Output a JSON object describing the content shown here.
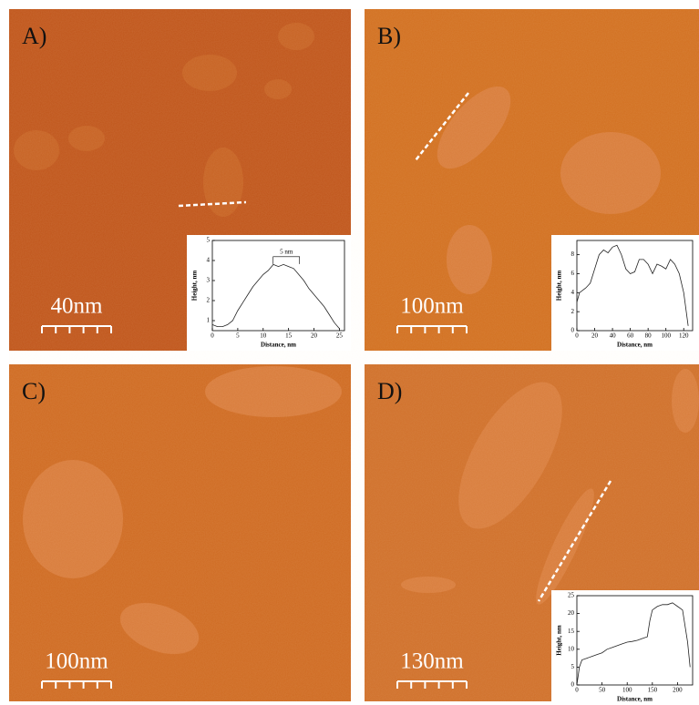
{
  "panels": [
    {
      "label": "A)",
      "scale_bar": "40nm",
      "inset": {
        "type": "line",
        "ylabel": "Height, nm",
        "xlabel": "Distance, nm",
        "annotation": "5 nm",
        "x": [
          0,
          1,
          2,
          3,
          4,
          5,
          6,
          7,
          8,
          9,
          10,
          11,
          12,
          13,
          14,
          15,
          16,
          17,
          18,
          19,
          20,
          21,
          22,
          23,
          24,
          25
        ],
        "values": [
          0.8,
          0.7,
          0.7,
          0.8,
          1.0,
          1.5,
          1.9,
          2.3,
          2.7,
          3.0,
          3.3,
          3.5,
          3.8,
          3.7,
          3.8,
          3.7,
          3.6,
          3.3,
          3.0,
          2.6,
          2.3,
          2.0,
          1.7,
          1.3,
          0.9,
          0.6
        ],
        "xlim": [
          0,
          26
        ],
        "ylim": [
          0.5,
          5
        ],
        "xticks": [
          0,
          5,
          10,
          15,
          20,
          25
        ],
        "yticks": [
          1,
          2,
          3,
          4,
          5
        ]
      }
    },
    {
      "label": "B)",
      "scale_bar": "100nm",
      "inset": {
        "type": "line",
        "ylabel": "Height, nm",
        "xlabel": "Distance, nm",
        "x": [
          0,
          3,
          10,
          15,
          20,
          25,
          30,
          35,
          40,
          45,
          50,
          55,
          60,
          65,
          70,
          75,
          80,
          85,
          90,
          95,
          100,
          105,
          110,
          115,
          120,
          125
        ],
        "values": [
          3,
          4,
          4.5,
          5,
          6.5,
          8,
          8.5,
          8.2,
          8.8,
          9,
          8,
          6.5,
          6,
          6.2,
          7.5,
          7.5,
          7,
          6,
          7,
          6.8,
          6.5,
          7.5,
          7,
          6,
          4,
          0.5
        ],
        "xlim": [
          0,
          130
        ],
        "ylim": [
          0,
          9.5
        ],
        "xticks": [
          0,
          20,
          40,
          60,
          80,
          100,
          120
        ],
        "yticks": [
          0,
          2,
          4,
          6,
          8
        ]
      }
    },
    {
      "label": "C)",
      "scale_bar": "100nm"
    },
    {
      "label": "D)",
      "scale_bar": "130nm",
      "inset": {
        "type": "line",
        "ylabel": "Height, nm",
        "xlabel": "Distance, nm",
        "x": [
          0,
          5,
          10,
          20,
          30,
          40,
          50,
          60,
          70,
          80,
          90,
          100,
          110,
          120,
          130,
          140,
          145,
          150,
          160,
          170,
          180,
          190,
          200,
          210,
          220,
          225
        ],
        "values": [
          0,
          5,
          7,
          7.5,
          8,
          8.5,
          9,
          10,
          10.5,
          11,
          11.5,
          12,
          12.2,
          12.5,
          13,
          13.5,
          18,
          21,
          22,
          22.5,
          22.5,
          23,
          22,
          21,
          12,
          5
        ],
        "xlim": [
          0,
          230
        ],
        "ylim": [
          0,
          25
        ],
        "xticks": [
          0,
          50,
          100,
          150,
          200
        ],
        "yticks": [
          0,
          5,
          10,
          15,
          20,
          25
        ]
      }
    }
  ]
}
